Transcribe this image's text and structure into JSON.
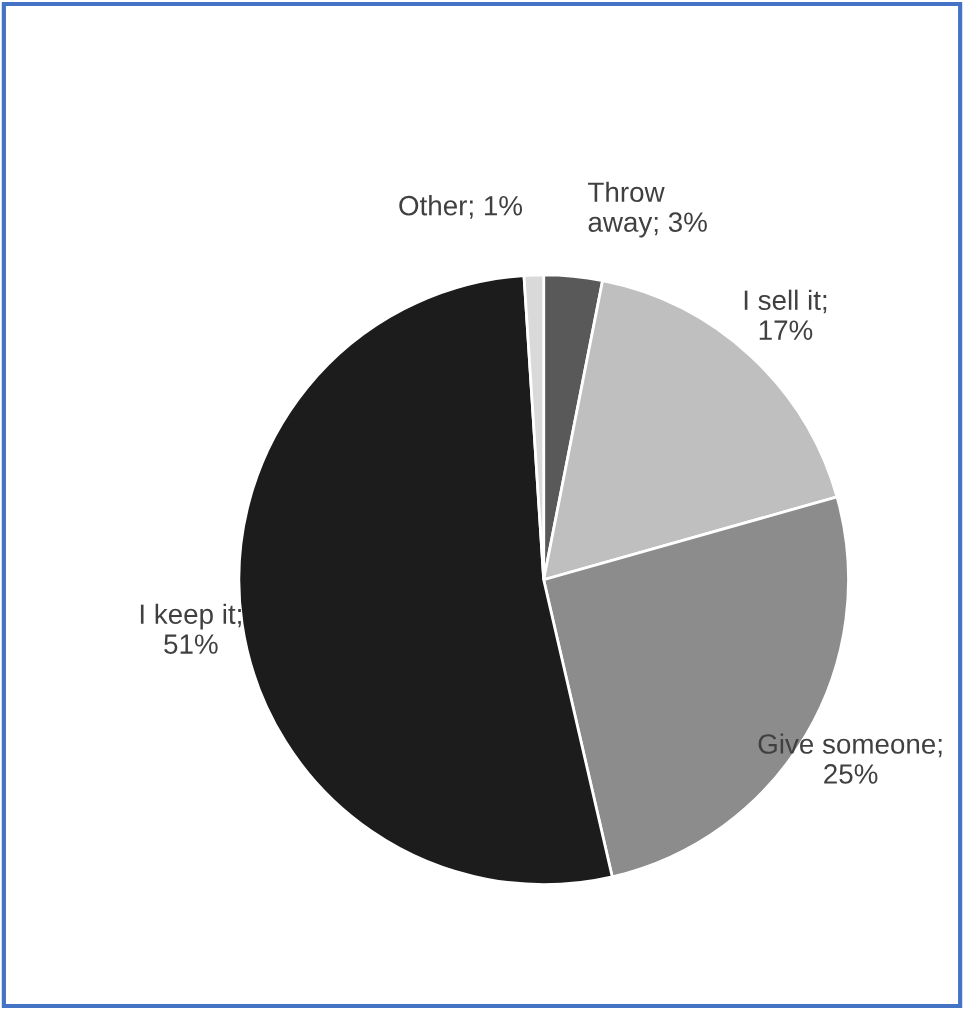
{
  "chart_data": {
    "type": "pie",
    "categories": [
      "Throw\naway; 3%",
      "I sell it;\n17%",
      "Give someone;\n25%",
      "I keep it;\n51%",
      "Other; 1%"
    ],
    "values": [
      3,
      17,
      25,
      51,
      1
    ],
    "colors": [
      "#595959",
      "#bfbfbf",
      "#8c8c8c",
      "#1c1c1c",
      "#d9d9d9"
    ],
    "legend": false
  }
}
